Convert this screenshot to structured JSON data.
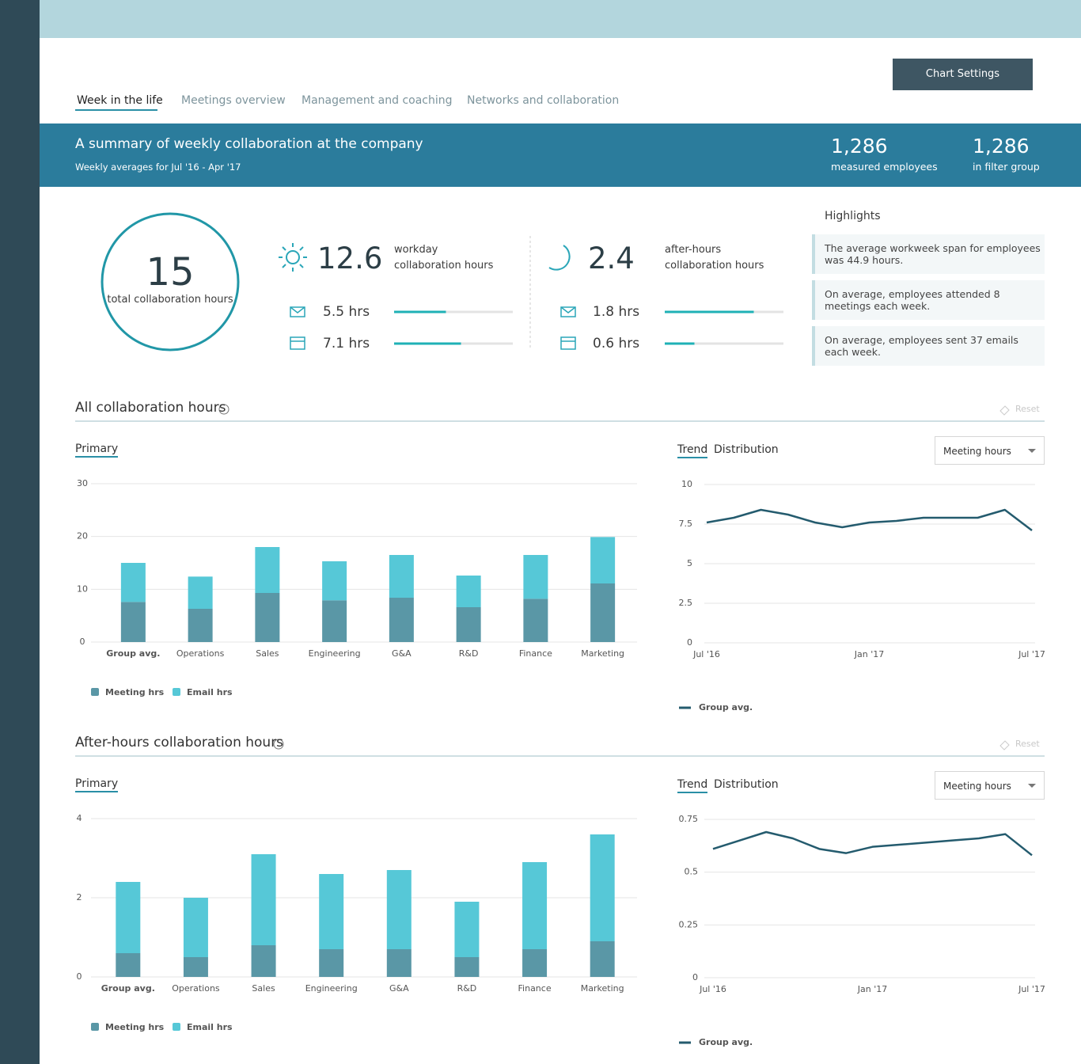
{
  "nav_tabs": [
    "Week in the life",
    "Meetings overview",
    "Management and coaching",
    "Networks and collaboration"
  ],
  "chart_settings_button": "Chart Settings",
  "banner": {
    "title": "A summary of weekly collaboration at the company",
    "subtitle": "Weekly averages for Jul '16 - Apr '17",
    "stats": [
      {
        "value": "1,286",
        "label": "measured employees"
      },
      {
        "value": "1,286",
        "label": "in filter group"
      }
    ]
  },
  "total": {
    "value": 15,
    "label": "total collaboration hours"
  },
  "workday": {
    "value": 12.6,
    "label_line1": "workday",
    "label_line2": "collaboration hours",
    "email": {
      "value": 5.5,
      "label": "5.5 hrs"
    },
    "meetings": {
      "value": 7.1,
      "label": "7.1 hrs"
    }
  },
  "after_hours": {
    "value": 2.4,
    "label_line1": "after-hours",
    "label_line2": "collaboration hours",
    "email": {
      "value": 1.8,
      "label": "1.8 hrs"
    },
    "meetings": {
      "value": 0.6,
      "label": "0.6 hrs"
    }
  },
  "highlights": {
    "title": "Highlights",
    "items": [
      "The average workweek span for employees was 44.9 hours.",
      "On average, employees attended 8 meetings each week.",
      "On average, employees sent 37 emails each week."
    ]
  },
  "sections": [
    {
      "title": "All collaboration hours",
      "reset": "Reset",
      "primary_tab": "Primary",
      "trend_tab": "Trend",
      "distribution_tab": "Distribution",
      "dropdown": "Meeting hours"
    },
    {
      "title": "After-hours collaboration hours",
      "reset": "Reset",
      "primary_tab": "Primary",
      "trend_tab": "Trend",
      "distribution_tab": "Distribution",
      "dropdown": "Meeting hours"
    }
  ],
  "chart_data": [
    {
      "type": "bar",
      "stacked": true,
      "categories": [
        "Group avg.",
        "Operations",
        "Sales",
        "Engineering",
        "G&A",
        "R&D",
        "Finance",
        "Marketing"
      ],
      "series": [
        {
          "name": "Meeting hrs",
          "color": "#5a97a6",
          "values": [
            7.6,
            6.3,
            9.3,
            7.9,
            8.4,
            6.6,
            8.2,
            11.1
          ]
        },
        {
          "name": "Email hrs",
          "color": "#56c8d7",
          "values": [
            7.4,
            6.1,
            8.7,
            7.4,
            8.1,
            6.0,
            8.3,
            8.8
          ]
        }
      ],
      "ylim": [
        0,
        30
      ],
      "yticks": [
        0,
        10,
        20,
        30
      ],
      "grid": true
    },
    {
      "type": "line",
      "categories": [
        "Jul '16",
        null,
        null,
        null,
        null,
        null,
        "Jan '17",
        null,
        null,
        null,
        null,
        null,
        "Jul '17"
      ],
      "series": [
        {
          "name": "Group avg.",
          "color": "#245b6e",
          "values": [
            7.6,
            7.9,
            8.4,
            8.1,
            7.6,
            7.3,
            7.6,
            7.7,
            7.9,
            7.9,
            7.9,
            8.4,
            7.1
          ]
        }
      ],
      "ylim": [
        0,
        10
      ],
      "yticks": [
        0,
        2.5,
        5,
        7.5,
        10
      ],
      "grid": true
    },
    {
      "type": "bar",
      "stacked": true,
      "categories": [
        "Group avg.",
        "Operations",
        "Sales",
        "Engineering",
        "G&A",
        "R&D",
        "Finance",
        "Marketing"
      ],
      "series": [
        {
          "name": "Meeting hrs",
          "color": "#5a97a6",
          "values": [
            0.6,
            0.5,
            0.8,
            0.7,
            0.7,
            0.5,
            0.7,
            0.9
          ]
        },
        {
          "name": "Email hrs",
          "color": "#56c8d7",
          "values": [
            1.8,
            1.5,
            2.3,
            1.9,
            2.0,
            1.4,
            2.2,
            2.7
          ]
        }
      ],
      "ylim": [
        0,
        4
      ],
      "yticks": [
        0,
        2,
        4
      ],
      "grid": true
    },
    {
      "type": "line",
      "categories": [
        "Jul '16",
        null,
        null,
        null,
        null,
        null,
        "Jan '17",
        null,
        null,
        null,
        null,
        null,
        "Jul '17"
      ],
      "series": [
        {
          "name": "Group avg.",
          "color": "#245b6e",
          "values": [
            0.61,
            0.65,
            0.69,
            0.66,
            0.61,
            0.59,
            0.62,
            0.63,
            0.64,
            0.65,
            0.66,
            0.68,
            0.58
          ]
        }
      ],
      "ylim": [
        0,
        0.75
      ],
      "yticks": [
        0,
        0.25,
        0.5,
        0.75
      ],
      "grid": true
    }
  ]
}
